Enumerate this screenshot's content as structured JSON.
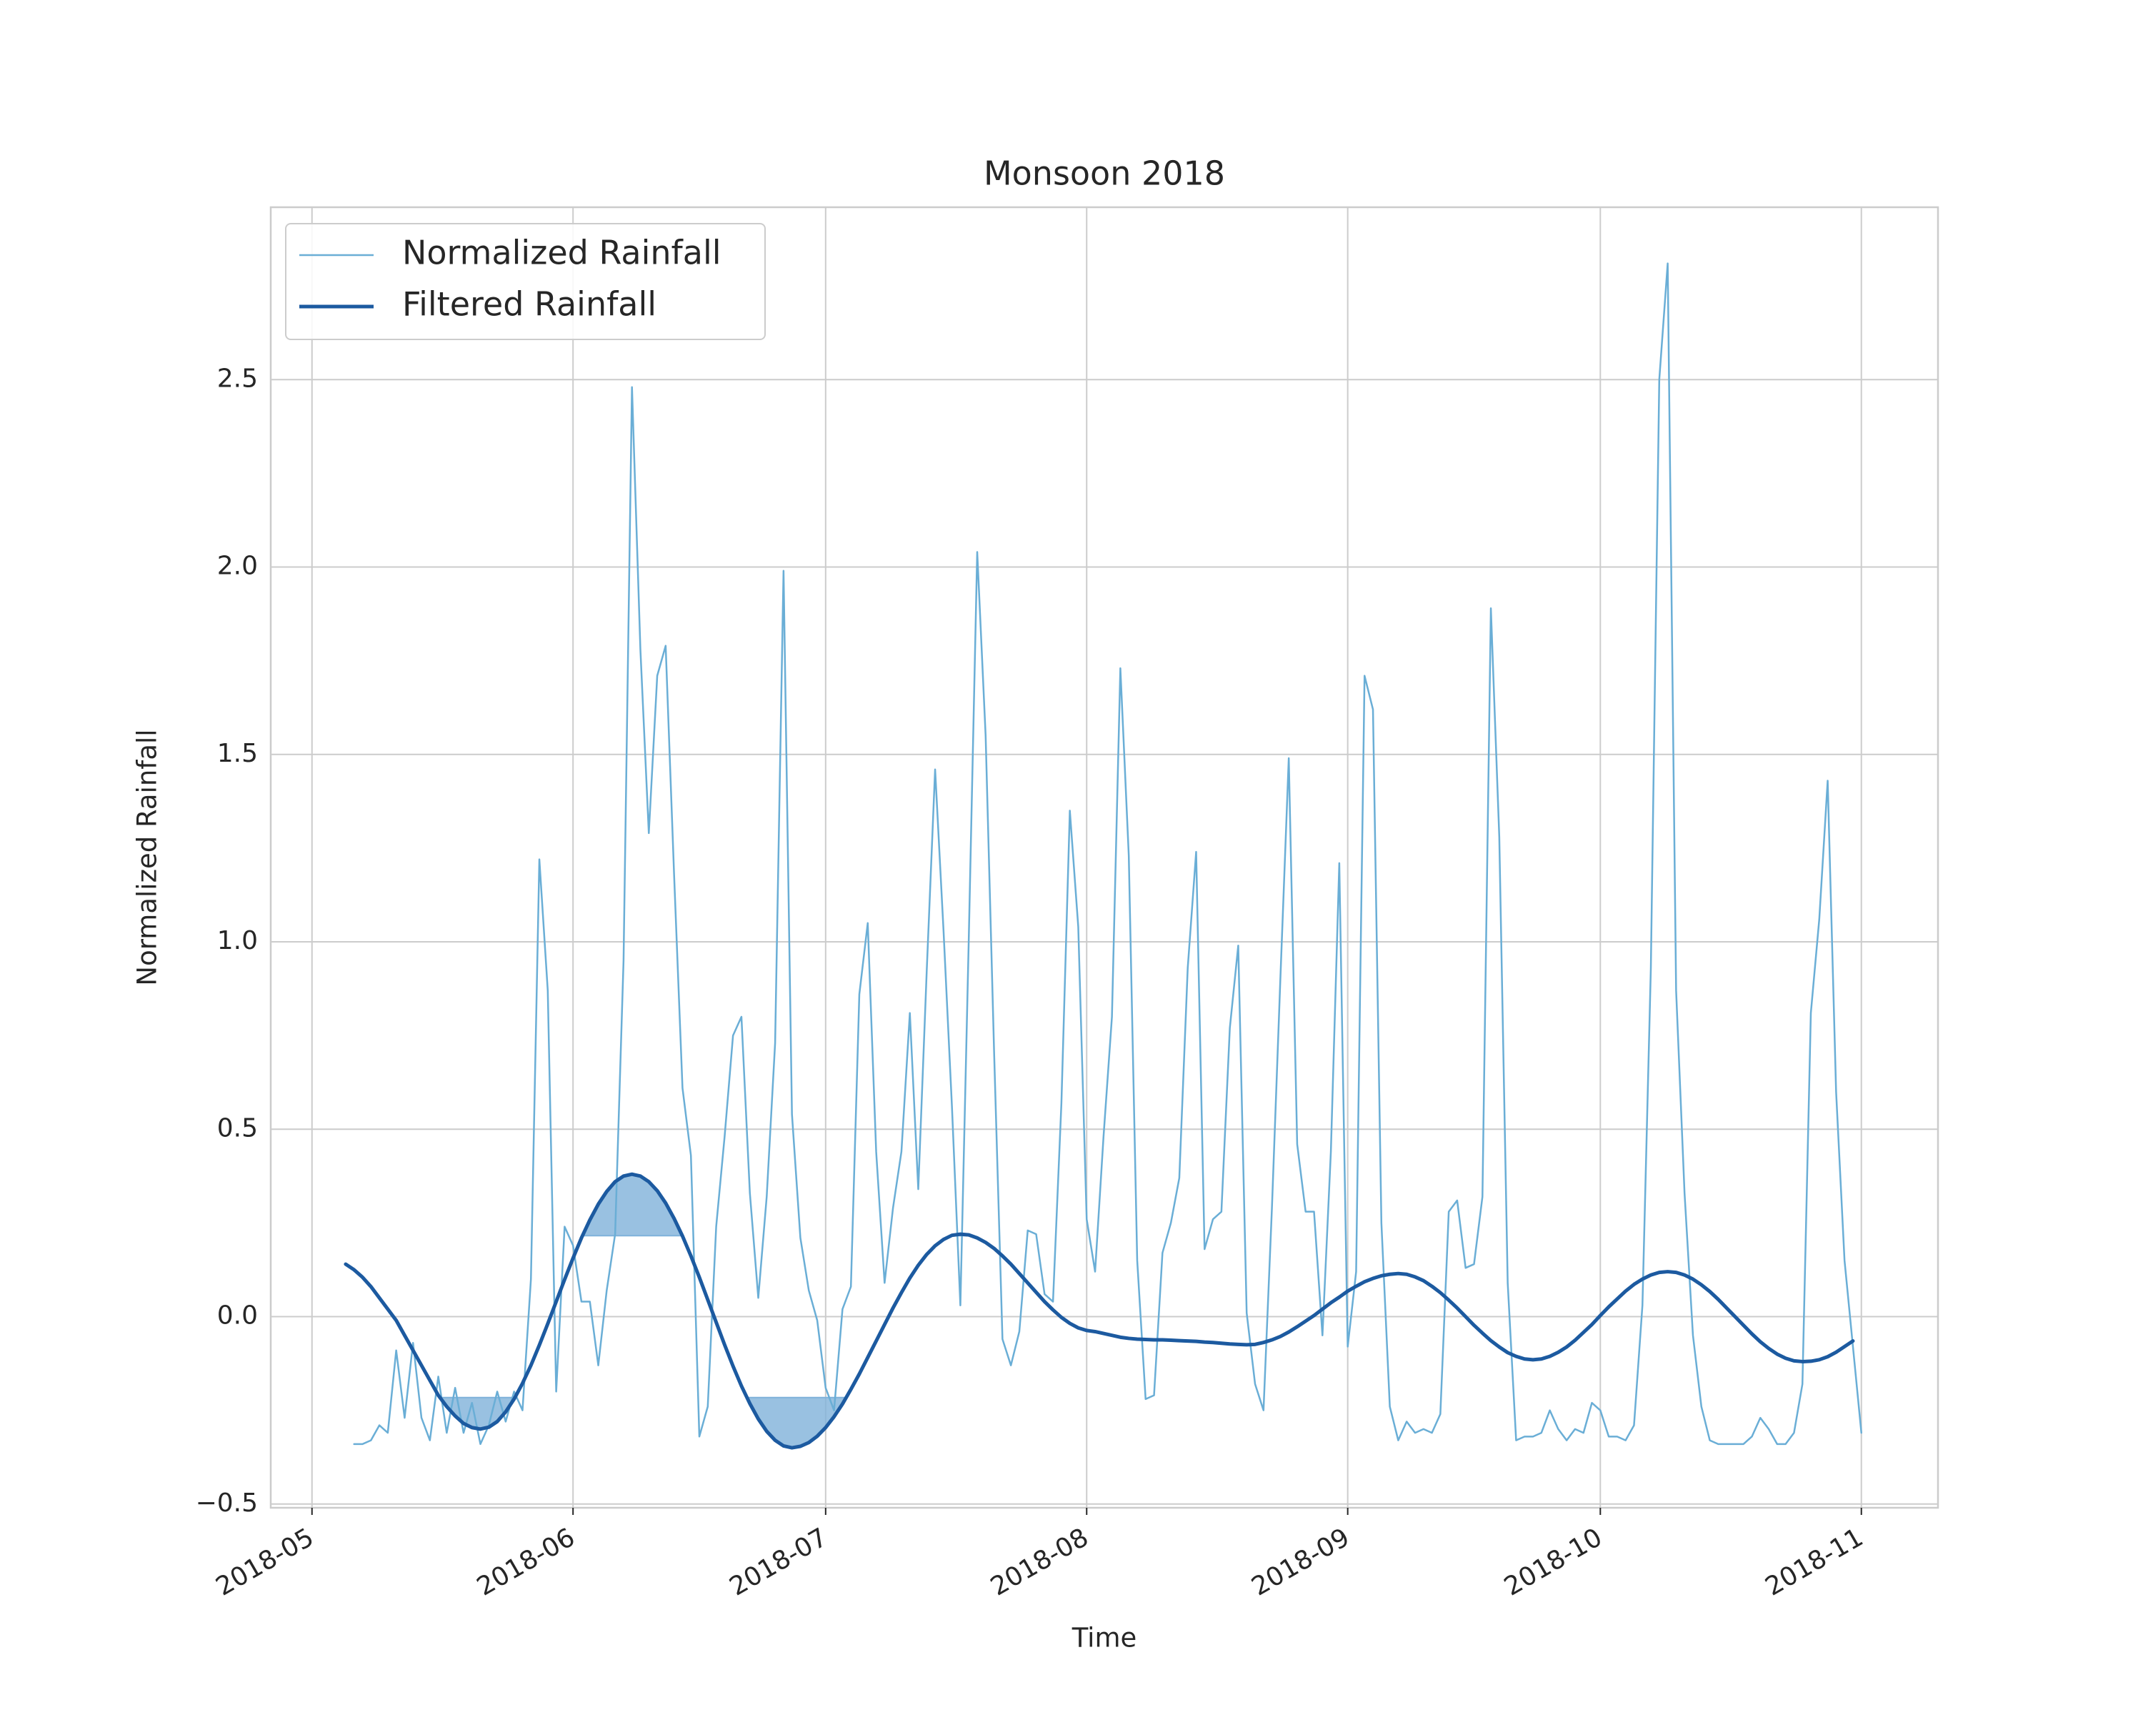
{
  "chart_data": {
    "type": "line",
    "title": "Monsoon 2018",
    "x_label": "Time",
    "y_label": "Normalized Rainfall",
    "x": [
      4,
      5,
      6,
      7,
      8,
      9,
      10,
      11,
      12,
      13,
      14,
      15,
      16,
      17,
      18,
      19,
      20,
      21,
      22,
      23,
      24,
      25,
      26,
      27,
      28,
      29,
      30,
      31,
      32,
      33,
      34,
      35,
      36,
      37,
      38,
      39,
      40,
      41,
      42,
      43,
      44,
      45,
      46,
      47,
      48,
      49,
      50,
      51,
      52,
      53,
      54,
      55,
      56,
      57,
      58,
      59,
      60,
      61,
      62,
      63,
      64,
      65,
      66,
      67,
      68,
      69,
      70,
      71,
      72,
      73,
      74,
      75,
      76,
      77,
      78,
      79,
      80,
      81,
      82,
      83,
      84,
      85,
      86,
      87,
      88,
      89,
      90,
      91,
      92,
      93,
      94,
      95,
      96,
      97,
      98,
      99,
      100,
      101,
      102,
      103,
      104,
      105,
      106,
      107,
      108,
      109,
      110,
      111,
      112,
      113,
      114,
      115,
      116,
      117,
      118,
      119,
      120,
      121,
      122,
      123,
      124,
      125,
      126,
      127,
      128,
      129,
      130,
      131,
      132,
      133,
      134,
      135,
      136,
      137,
      138,
      139,
      140,
      141,
      142,
      143,
      144,
      145,
      146,
      147,
      148,
      149,
      150,
      151,
      152,
      153,
      154,
      155,
      156,
      157,
      158,
      159,
      160,
      161,
      162,
      163,
      164,
      165,
      166,
      167,
      168,
      169,
      170,
      171,
      172,
      173,
      174,
      175,
      176,
      177,
      178,
      179,
      180,
      181,
      182,
      183,
      184
    ],
    "series": [
      {
        "name": "Normalized Rainfall",
        "color": "#6aaed6",
        "width": 2.5,
        "values": [
          null,
          -0.34,
          -0.34,
          -0.33,
          -0.29,
          -0.31,
          -0.09,
          -0.27,
          -0.07,
          -0.27,
          -0.33,
          -0.16,
          -0.31,
          -0.19,
          -0.31,
          -0.23,
          -0.34,
          -0.29,
          -0.2,
          -0.28,
          -0.2,
          -0.25,
          0.1,
          1.22,
          0.87,
          -0.2,
          0.24,
          0.19,
          0.04,
          0.04,
          -0.13,
          0.07,
          0.22,
          0.95,
          2.48,
          1.78,
          1.29,
          1.71,
          1.79,
          1.18,
          0.61,
          0.43,
          -0.32,
          -0.24,
          0.24,
          0.48,
          0.75,
          0.8,
          0.33,
          0.05,
          0.32,
          0.73,
          1.99,
          0.54,
          0.21,
          0.07,
          -0.01,
          -0.19,
          -0.25,
          0.02,
          0.08,
          0.86,
          1.05,
          0.44,
          0.09,
          0.29,
          0.44,
          0.81,
          0.34,
          0.92,
          1.46,
          1.03,
          0.56,
          0.03,
          1.01,
          2.04,
          1.55,
          0.71,
          -0.06,
          -0.13,
          -0.04,
          0.23,
          0.22,
          0.06,
          0.04,
          0.57,
          1.35,
          1.04,
          0.26,
          0.12,
          0.48,
          0.8,
          1.73,
          1.23,
          0.15,
          -0.22,
          -0.21,
          0.17,
          0.25,
          0.37,
          0.93,
          1.24,
          0.18,
          0.26,
          0.28,
          0.77,
          0.99,
          0.01,
          -0.18,
          -0.25,
          0.29,
          0.9,
          1.49,
          0.46,
          0.28,
          0.28,
          -0.05,
          0.44,
          1.21,
          -0.08,
          0.12,
          1.71,
          1.62,
          0.25,
          -0.24,
          -0.33,
          -0.28,
          -0.31,
          -0.3,
          -0.31,
          -0.26,
          0.28,
          0.31,
          0.13,
          0.14,
          0.32,
          1.89,
          1.28,
          0.09,
          -0.33,
          -0.32,
          -0.32,
          -0.31,
          -0.25,
          -0.3,
          -0.33,
          -0.3,
          -0.31,
          -0.23,
          -0.25,
          -0.32,
          -0.32,
          -0.33,
          -0.29,
          0.03,
          0.93,
          2.5,
          2.81,
          0.87,
          0.33,
          -0.05,
          -0.24,
          -0.33,
          -0.34,
          -0.34,
          -0.34,
          -0.34,
          -0.32,
          -0.27,
          -0.3,
          -0.34,
          -0.34,
          -0.31,
          -0.18,
          0.81,
          1.06,
          1.43,
          0.6,
          0.15,
          -0.08,
          -0.31
        ]
      },
      {
        "name": "Filtered Rainfall",
        "color": "#1c5aa0",
        "width": 5,
        "values": [
          0.14,
          0.125,
          0.105,
          0.08,
          0.05,
          0.02,
          -0.01,
          -0.05,
          -0.09,
          -0.13,
          -0.17,
          -0.21,
          -0.24,
          -0.265,
          -0.285,
          -0.296,
          -0.3,
          -0.295,
          -0.28,
          -0.254,
          -0.22,
          -0.178,
          -0.13,
          -0.076,
          -0.019,
          0.04,
          0.099,
          0.156,
          0.21,
          0.258,
          0.3,
          0.334,
          0.36,
          0.375,
          0.38,
          0.375,
          0.36,
          0.336,
          0.303,
          0.262,
          0.215,
          0.162,
          0.105,
          0.045,
          -0.015,
          -0.075,
          -0.132,
          -0.185,
          -0.232,
          -0.273,
          -0.306,
          -0.33,
          -0.345,
          -0.35,
          -0.346,
          -0.336,
          -0.319,
          -0.296,
          -0.267,
          -0.233,
          -0.194,
          -0.153,
          -0.109,
          -0.065,
          -0.021,
          0.023,
          0.064,
          0.103,
          0.137,
          0.166,
          0.189,
          0.206,
          0.217,
          0.22,
          0.218,
          0.21,
          0.198,
          0.182,
          0.162,
          0.14,
          0.115,
          0.09,
          0.065,
          0.04,
          0.018,
          -0.002,
          -0.018,
          -0.03,
          -0.037,
          -0.04,
          -0.045,
          -0.05,
          -0.055,
          -0.058,
          -0.06,
          -0.061,
          -0.062,
          -0.062,
          -0.063,
          -0.064,
          -0.065,
          -0.066,
          -0.068,
          -0.069,
          -0.071,
          -0.073,
          -0.074,
          -0.075,
          -0.074,
          -0.069,
          -0.062,
          -0.053,
          -0.041,
          -0.027,
          -0.012,
          0.003,
          0.02,
          0.037,
          0.052,
          0.068,
          0.081,
          0.093,
          0.102,
          0.109,
          0.113,
          0.115,
          0.113,
          0.106,
          0.096,
          0.081,
          0.064,
          0.044,
          0.023,
          0,
          -0.023,
          -0.044,
          -0.064,
          -0.081,
          -0.096,
          -0.106,
          -0.113,
          -0.115,
          -0.113,
          -0.106,
          -0.095,
          -0.081,
          -0.063,
          -0.042,
          -0.021,
          0.003,
          0.026,
          0.047,
          0.068,
          0.086,
          0.1,
          0.111,
          0.118,
          0.12,
          0.118,
          0.111,
          0.1,
          0.085,
          0.067,
          0.046,
          0.023,
          0,
          -0.023,
          -0.046,
          -0.067,
          -0.085,
          -0.1,
          -0.111,
          -0.118,
          -0.12,
          -0.119,
          -0.115,
          -0.107,
          -0.095,
          -0.08,
          -0.065,
          null
        ]
      }
    ],
    "fill_thresholds": [
      -0.216,
      0.216
    ],
    "fill_color": "#7fb2da",
    "xlim": [
      -4.9,
      193.1
    ],
    "xticks": [
      {
        "value": 0,
        "label": "2018-05"
      },
      {
        "value": 31,
        "label": "2018-06"
      },
      {
        "value": 61,
        "label": "2018-07"
      },
      {
        "value": 92,
        "label": "2018-08"
      },
      {
        "value": 123,
        "label": "2018-09"
      },
      {
        "value": 153,
        "label": "2018-10"
      },
      {
        "value": 184,
        "label": "2018-11"
      }
    ],
    "ylim": [
      -0.51,
      2.96
    ],
    "yticks": [
      {
        "value": -0.5,
        "label": "−0.5"
      },
      {
        "value": 0,
        "label": "0.0"
      },
      0.5,
      {
        "value": 1,
        "label": "1.0"
      },
      1.5,
      {
        "value": 2,
        "label": "2.0"
      },
      2.5
    ],
    "grid": true,
    "legend": "upper left"
  }
}
